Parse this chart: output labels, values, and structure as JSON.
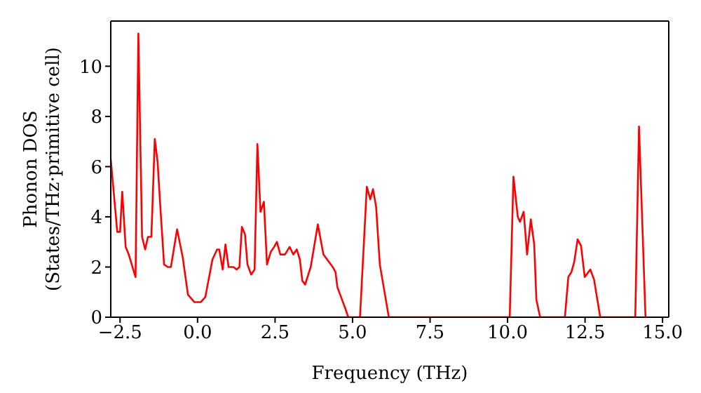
{
  "chart_data": {
    "type": "line",
    "xlabel": "Frequency (THz)",
    "ylabel": "Phonon DOS\n(States/THz·primitive cell)",
    "x": [
      -2.8,
      -2.59,
      -2.5,
      -2.43,
      -2.32,
      -2.22,
      -2.0,
      -1.91,
      -1.79,
      -1.69,
      -1.6,
      -1.49,
      -1.38,
      -1.29,
      -1.19,
      -1.08,
      -0.96,
      -0.86,
      -0.66,
      -0.48,
      -0.31,
      -0.1,
      0.1,
      0.25,
      0.48,
      0.63,
      0.7,
      0.81,
      0.9,
      1.0,
      1.16,
      1.26,
      1.35,
      1.43,
      1.53,
      1.61,
      1.73,
      1.84,
      1.93,
      2.03,
      2.14,
      2.24,
      2.36,
      2.47,
      2.56,
      2.67,
      2.82,
      2.97,
      3.09,
      3.2,
      3.3,
      3.38,
      3.47,
      3.65,
      3.88,
      4.06,
      4.18,
      4.36,
      4.45,
      4.51,
      4.63,
      4.78,
      4.86,
      5.24,
      5.46,
      5.57,
      5.66,
      5.76,
      5.88,
      6.17,
      10.07,
      10.19,
      10.33,
      10.4,
      10.52,
      10.63,
      10.75,
      10.86,
      10.93,
      11.05,
      11.85,
      11.96,
      12.06,
      12.15,
      12.26,
      12.37,
      12.49,
      12.67,
      12.79,
      12.99,
      14.12,
      14.24,
      14.45
    ],
    "series": [
      {
        "color": "#ff0000",
        "values": [
          6.3,
          3.4,
          3.4,
          5.0,
          2.8,
          2.5,
          1.6,
          11.3,
          3.2,
          2.7,
          3.2,
          3.2,
          7.1,
          6.2,
          4.2,
          2.1,
          2.0,
          2.0,
          3.5,
          2.4,
          0.9,
          0.6,
          0.6,
          0.8,
          2.3,
          2.7,
          2.7,
          1.9,
          2.9,
          2.0,
          2.0,
          1.9,
          2.0,
          3.6,
          3.3,
          2.1,
          1.7,
          1.9,
          6.9,
          4.2,
          4.6,
          2.1,
          2.6,
          2.8,
          3.0,
          2.5,
          2.5,
          2.8,
          2.5,
          2.7,
          2.3,
          1.45,
          1.3,
          2.0,
          3.7,
          2.5,
          2.3,
          2.0,
          1.8,
          1.2,
          0.8,
          0.3,
          0,
          0,
          5.2,
          4.7,
          5.1,
          4.4,
          2.1,
          0,
          0,
          5.6,
          4.0,
          3.8,
          4.2,
          2.5,
          3.9,
          2.9,
          0.7,
          0,
          0,
          1.6,
          1.8,
          2.2,
          3.1,
          2.85,
          1.6,
          1.9,
          1.5,
          0,
          0,
          7.6,
          0
        ]
      }
    ],
    "xlim": [
      -2.8,
      15.2
    ],
    "ylim": [
      0,
      11.8
    ],
    "xticks": [
      {
        "value": -2.5,
        "label": "−2.5"
      },
      {
        "value": 0,
        "label": "0.0"
      },
      {
        "value": 2.5,
        "label": "2.5"
      },
      {
        "value": 5,
        "label": "5.0"
      },
      {
        "value": 7.5,
        "label": "7.5"
      },
      {
        "value": 10,
        "label": "10.0"
      },
      {
        "value": 12.5,
        "label": "12.5"
      },
      {
        "value": 15,
        "label": "15.0"
      }
    ],
    "yticks": [
      0,
      2,
      4,
      6,
      8,
      10
    ],
    "grid": false,
    "legend": false,
    "marker": "none",
    "line_style": "solid"
  }
}
